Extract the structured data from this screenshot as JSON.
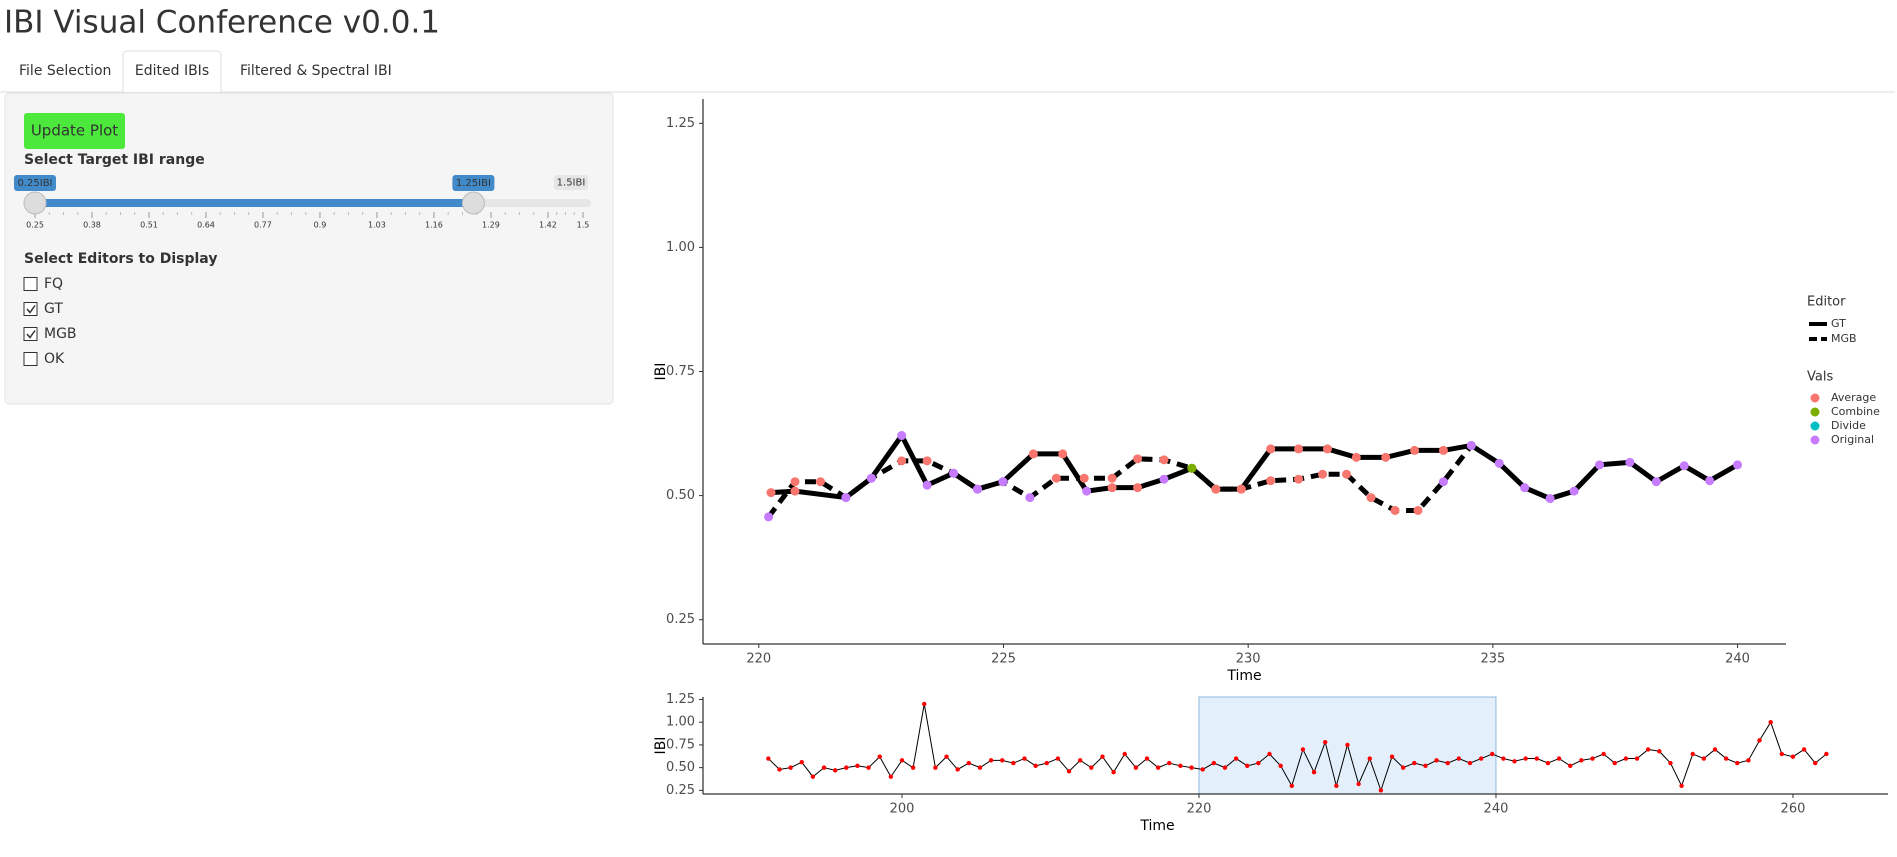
{
  "header": {
    "title": "IBI Visual Conference v0.0.1"
  },
  "tabs": [
    {
      "label": "File Selection",
      "active": false
    },
    {
      "label": "Edited IBIs",
      "active": true
    },
    {
      "label": "Filtered & Spectral IBI",
      "active": false
    }
  ],
  "sidebar": {
    "button": "Update Plot",
    "range_label": "Select Target IBI range",
    "slider": {
      "min": 0.25,
      "max": 1.5,
      "from": 0.25,
      "to": 1.25,
      "from_label": "0.25IBI",
      "to_label": "1.25IBI",
      "max_label": "1.5IBI",
      "ticks": [
        0.25,
        0.38,
        0.51,
        0.64,
        0.77,
        0.9,
        1.03,
        1.16,
        1.29,
        1.42,
        1.5
      ]
    },
    "editors_label": "Select Editors to Display",
    "editors": [
      {
        "label": "FQ",
        "checked": false
      },
      {
        "label": "GT",
        "checked": true
      },
      {
        "label": "MGB",
        "checked": true
      },
      {
        "label": "OK",
        "checked": false
      }
    ]
  },
  "chart_data": [
    {
      "type": "line",
      "xlabel": "Time",
      "ylabel": "IBI",
      "xlim": [
        218.86,
        240.99
      ],
      "ylim": [
        0.201,
        1.299
      ],
      "xticks": [
        220,
        225,
        230,
        235,
        240
      ],
      "yticks": [
        {
          "value": 0.25,
          "label": "0.25"
        },
        {
          "value": 0.5,
          "label": "0.50"
        },
        {
          "value": 0.75,
          "label": "0.75"
        },
        {
          "value": 1,
          "label": "1.00"
        },
        {
          "value": 1.25,
          "label": "1.25"
        }
      ],
      "legend_title": "Editor",
      "series": [
        {
          "name": "GT",
          "color": "#000000",
          "line_style": "solid",
          "x": [
            220.25,
            220.74,
            221.78,
            222.3,
            222.92,
            223.44,
            223.98,
            224.47,
            224.99,
            225.61,
            226.21,
            226.7,
            227.22,
            227.74,
            228.28,
            228.85,
            229.34,
            229.86,
            230.46,
            231.03,
            231.62,
            232.21,
            232.81,
            233.4,
            233.99,
            234.56,
            235.13,
            235.65,
            236.17,
            236.66,
            237.18,
            237.8,
            238.34,
            238.91,
            239.43,
            240.0
          ],
          "values": [
            0.506,
            0.509,
            0.496,
            0.535,
            0.621,
            0.521,
            0.545,
            0.513,
            0.528,
            0.584,
            0.584,
            0.509,
            0.516,
            0.516,
            0.533,
            0.555,
            0.513,
            0.513,
            0.594,
            0.594,
            0.594,
            0.577,
            0.577,
            0.591,
            0.591,
            0.601,
            0.565,
            0.516,
            0.494,
            0.509,
            0.562,
            0.567,
            0.528,
            0.56,
            0.53,
            0.562
          ],
          "point_vals": [
            "Average",
            "Average",
            "Original",
            "Original",
            "Original",
            "Original",
            "Original",
            "Original",
            "Original",
            "Average",
            "Average",
            "Original",
            "Average",
            "Average",
            "Original",
            "Combine",
            "Average",
            "Average",
            "Average",
            "Average",
            "Average",
            "Average",
            "Average",
            "Average",
            "Average",
            "Original",
            "Original",
            "Original",
            "Original",
            "Original",
            "Original",
            "Original",
            "Original",
            "Original",
            "Original",
            "Original"
          ]
        },
        {
          "name": "MGB",
          "color": "#000000",
          "line_style": "dashed",
          "x": [
            220.2,
            220.74,
            221.26,
            221.78,
            222.3,
            222.92,
            223.44,
            223.98,
            224.47,
            224.99,
            225.54,
            226.08,
            226.65,
            227.22,
            227.74,
            228.28,
            228.85,
            229.34,
            229.86,
            230.46,
            231.03,
            231.52,
            232.01,
            232.51,
            233.0,
            233.47,
            233.99,
            234.56
          ],
          "values": [
            0.457,
            0.528,
            0.528,
            0.496,
            0.535,
            0.57,
            0.57,
            0.545,
            0.513,
            0.528,
            0.496,
            0.535,
            0.535,
            0.535,
            0.574,
            0.572,
            0.555,
            0.513,
            0.513,
            0.53,
            0.533,
            0.543,
            0.543,
            0.496,
            0.47,
            0.47,
            0.528,
            0.601
          ],
          "point_vals": [
            "Original",
            "Average",
            "Average",
            "Original",
            "Original",
            "Average",
            "Average",
            "Original",
            "Original",
            "Original",
            "Original",
            "Average",
            "Average",
            "Average",
            "Average",
            "Average",
            "Combine",
            "Average",
            "Average",
            "Average",
            "Average",
            "Average",
            "Average",
            "Average",
            "Average",
            "Average",
            "Original",
            "Original"
          ]
        }
      ],
      "vals_title": "Vals",
      "vals": [
        {
          "name": "Average",
          "color": "#F8766D"
        },
        {
          "name": "Combine",
          "color": "#7CAE00"
        },
        {
          "name": "Divide",
          "color": "#00BFC4"
        },
        {
          "name": "Original",
          "color": "#C77CFF"
        }
      ]
    },
    {
      "type": "line",
      "xlabel": "Time",
      "ylabel": "IBI",
      "xlim": [
        186.6,
        266.4
      ],
      "ylim": [
        0.21,
        1.277
      ],
      "xticks": [
        200,
        220,
        240,
        260
      ],
      "yticks": [
        {
          "value": 0.25,
          "label": "0.25"
        },
        {
          "value": 0.5,
          "label": "0.50"
        },
        {
          "value": 0.75,
          "label": "0.75"
        },
        {
          "value": 1,
          "label": "1.00"
        },
        {
          "value": 1.25,
          "label": "1.25"
        }
      ],
      "color": "#000000",
      "point_color": "#FF0000",
      "selection": [
        220,
        240
      ],
      "selection_color": "#E3F0FB",
      "x": [
        191,
        191.75,
        192.5,
        193.25,
        194,
        194.75,
        195.5,
        196.25,
        197,
        197.75,
        198.5,
        199.25,
        200,
        200.75,
        201.5,
        202.25,
        203,
        203.75,
        204.5,
        205.25,
        206,
        206.75,
        207.5,
        208.25,
        209,
        209.75,
        210.5,
        211.25,
        212,
        212.75,
        213.5,
        214.25,
        215,
        215.75,
        216.5,
        217.25,
        218,
        218.75,
        219.5,
        220.25,
        221,
        221.75,
        222.5,
        223.25,
        224,
        224.75,
        225.5,
        226.25,
        227,
        227.75,
        228.5,
        229.25,
        230,
        230.75,
        231.5,
        232.25,
        233,
        233.75,
        234.5,
        235.25,
        236,
        236.75,
        237.5,
        238.25,
        239,
        239.75,
        240.5,
        241.25,
        242,
        242.75,
        243.5,
        244.25,
        245,
        245.75,
        246.5,
        247.25,
        248,
        248.75,
        249.5,
        250.25,
        251,
        251.75,
        252.5,
        253.25,
        254,
        254.75,
        255.5,
        256.25,
        257,
        257.75,
        258.5,
        259.25,
        260,
        260.75,
        261.5,
        262.25
      ],
      "values": [
        0.6,
        0.48,
        0.5,
        0.56,
        0.4,
        0.5,
        0.47,
        0.5,
        0.52,
        0.5,
        0.62,
        0.4,
        0.58,
        0.5,
        1.2,
        0.5,
        0.62,
        0.48,
        0.55,
        0.5,
        0.58,
        0.58,
        0.55,
        0.6,
        0.52,
        0.55,
        0.6,
        0.46,
        0.58,
        0.5,
        0.62,
        0.45,
        0.65,
        0.5,
        0.6,
        0.5,
        0.55,
        0.52,
        0.5,
        0.48,
        0.55,
        0.5,
        0.6,
        0.52,
        0.55,
        0.65,
        0.52,
        0.3,
        0.7,
        0.45,
        0.78,
        0.3,
        0.75,
        0.32,
        0.6,
        0.25,
        0.62,
        0.5,
        0.55,
        0.52,
        0.58,
        0.55,
        0.6,
        0.55,
        0.6,
        0.65,
        0.6,
        0.57,
        0.6,
        0.6,
        0.55,
        0.6,
        0.52,
        0.58,
        0.6,
        0.65,
        0.55,
        0.6,
        0.6,
        0.7,
        0.68,
        0.55,
        0.3,
        0.65,
        0.6,
        0.7,
        0.6,
        0.55,
        0.58,
        0.8,
        1.0,
        0.65,
        0.62,
        0.7,
        0.55,
        0.65
      ]
    }
  ]
}
